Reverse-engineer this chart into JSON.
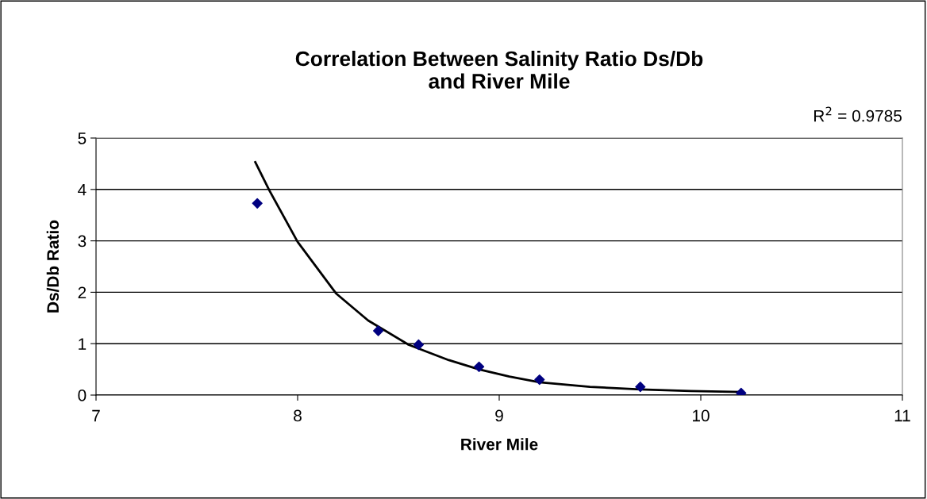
{
  "chart_data": {
    "type": "scatter",
    "title": "Correlation Between Salinity Ratio Ds/Db\nand River Mile",
    "xlabel": "River Mile",
    "ylabel": "Ds/Db Ratio",
    "xlim": [
      7,
      11
    ],
    "xticks": [
      7,
      8,
      9,
      10,
      11
    ],
    "ylim": [
      0,
      5
    ],
    "yticks": [
      0,
      1,
      2,
      3,
      4,
      5
    ],
    "grid": "y",
    "marker": "diamond",
    "annotations": [
      "R$^{2}$ = 0.9785"
    ],
    "series": [
      {
        "color": "#000080",
        "x": [
          7.8,
          8.4,
          8.6,
          8.9,
          9.2,
          9.7,
          10.2
        ],
        "values": [
          3.73,
          1.25,
          0.98,
          0.55,
          0.3,
          0.16,
          0.04
        ]
      },
      {
        "type": "line",
        "color": "#000000",
        "marker": "none",
        "x": [
          7.79,
          7.86,
          8.0,
          8.19,
          8.35,
          8.55,
          8.75,
          8.9,
          9.05,
          9.2,
          9.45,
          9.7,
          9.95,
          10.2
        ],
        "values": [
          4.53,
          3.98,
          2.98,
          1.98,
          1.45,
          0.98,
          0.68,
          0.5,
          0.36,
          0.25,
          0.16,
          0.11,
          0.08,
          0.06
        ]
      }
    ]
  }
}
